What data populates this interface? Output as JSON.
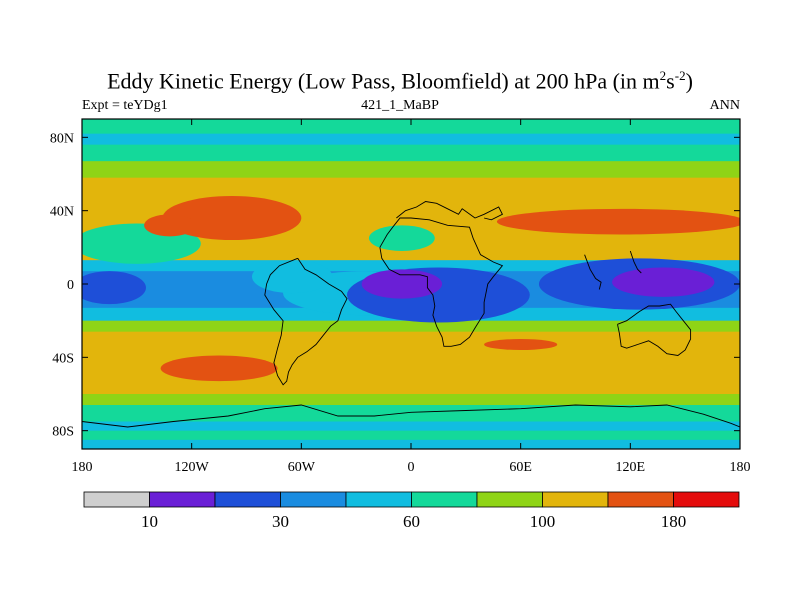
{
  "header": {
    "title_main": "Eddy Kinetic Energy (Low Pass, Bloomfield) at 200 hPa (in m",
    "title_sup1": "2",
    "title_mid": "s",
    "title_sup2": "-2",
    "title_end": ")",
    "left_label": "Expt = teYDg1",
    "center_label": "421_1_MaBP",
    "right_label": "ANN"
  },
  "chart_data": {
    "type": "heatmap",
    "title": "Eddy Kinetic Energy (Low Pass, Bloomfield) at 200 hPa (in m2s-2)",
    "xlabel": "",
    "ylabel": "",
    "xlim": [
      -180,
      180
    ],
    "ylim": [
      -90,
      90
    ],
    "x_ticks": [
      {
        "value": -180,
        "label": "180"
      },
      {
        "value": -120,
        "label": "120W"
      },
      {
        "value": -60,
        "label": "60W"
      },
      {
        "value": 0,
        "label": "0"
      },
      {
        "value": 60,
        "label": "60E"
      },
      {
        "value": 120,
        "label": "120E"
      },
      {
        "value": 180,
        "label": "180"
      }
    ],
    "y_ticks": [
      {
        "value": 80,
        "label": "80N"
      },
      {
        "value": 40,
        "label": "40N"
      },
      {
        "value": 0,
        "label": "0"
      },
      {
        "value": -40,
        "label": "40S"
      },
      {
        "value": -80,
        "label": "80S"
      }
    ],
    "colorbar": {
      "colors": [
        "#cfcfcf",
        "#6a1fd6",
        "#1e4fd8",
        "#1a8ce0",
        "#11bde0",
        "#14d99a",
        "#8fd416",
        "#e2b50c",
        "#e35212",
        "#e40c0c"
      ],
      "labels": [
        {
          "after_box": 1,
          "text": "10"
        },
        {
          "after_box": 3,
          "text": "30"
        },
        {
          "after_box": 5,
          "text": "60"
        },
        {
          "after_box": 7,
          "text": "100"
        },
        {
          "after_box": 9,
          "text": "180"
        }
      ]
    },
    "bands": [
      {
        "lat_top": 90,
        "lat_bottom": 82,
        "level": 5
      },
      {
        "lat_top": 82,
        "lat_bottom": 76,
        "level": 4
      },
      {
        "lat_top": 76,
        "lat_bottom": 67,
        "level": 5
      },
      {
        "lat_top": 67,
        "lat_bottom": 58,
        "level": 6
      },
      {
        "lat_top": 58,
        "lat_bottom": 13,
        "level": 7
      },
      {
        "lat_top": 13,
        "lat_bottom": 7,
        "level": 4
      },
      {
        "lat_top": 7,
        "lat_bottom": -13,
        "level": 3
      },
      {
        "lat_top": -13,
        "lat_bottom": -20,
        "level": 4
      },
      {
        "lat_top": -20,
        "lat_bottom": -26,
        "level": 6
      },
      {
        "lat_top": -26,
        "lat_bottom": -60,
        "level": 7
      },
      {
        "lat_top": -60,
        "lat_bottom": -66,
        "level": 6
      },
      {
        "lat_top": -66,
        "lat_bottom": -75,
        "level": 5
      },
      {
        "lat_top": -75,
        "lat_bottom": -80,
        "level": 4
      },
      {
        "lat_top": -80,
        "lat_bottom": -85,
        "level": 5
      },
      {
        "lat_top": -85,
        "lat_bottom": -90,
        "level": 4
      }
    ],
    "blobs": [
      {
        "lon": -150,
        "lat": 22,
        "rlon": 35,
        "rlat": 11,
        "level": 5
      },
      {
        "lon": -25,
        "lat": -5,
        "rlon": 45,
        "rlat": 12,
        "level": 4
      },
      {
        "lon": -65,
        "lat": 4,
        "rlon": 22,
        "rlat": 9,
        "level": 4
      },
      {
        "lon": -5,
        "lat": 25,
        "rlon": 18,
        "rlat": 7,
        "level": 5
      },
      {
        "lon": -98,
        "lat": 36,
        "rlon": 38,
        "rlat": 12,
        "level": 8
      },
      {
        "lon": -132,
        "lat": 32,
        "rlon": 14,
        "rlat": 6,
        "level": 8
      },
      {
        "lon": 115,
        "lat": 34,
        "rlon": 68,
        "rlat": 7,
        "level": 8
      },
      {
        "lon": 15,
        "lat": -6,
        "rlon": 50,
        "rlat": 15,
        "level": 2
      },
      {
        "lon": 125,
        "lat": 0,
        "rlon": 55,
        "rlat": 14,
        "level": 2
      },
      {
        "lon": -5,
        "lat": 0,
        "rlon": 22,
        "rlat": 8,
        "level": 1
      },
      {
        "lon": 138,
        "lat": 1,
        "rlon": 28,
        "rlat": 8,
        "level": 1
      },
      {
        "lon": -165,
        "lat": -2,
        "rlon": 20,
        "rlat": 9,
        "level": 2
      },
      {
        "lon": -105,
        "lat": -46,
        "rlon": 32,
        "rlat": 7,
        "level": 8
      },
      {
        "lon": 60,
        "lat": -33,
        "rlon": 20,
        "rlat": 3,
        "level": 8
      }
    ],
    "coastlines": [
      [
        [
          -62,
          14
        ],
        [
          -58,
          8
        ],
        [
          -52,
          5
        ],
        [
          -45,
          0
        ],
        [
          -38,
          -4
        ],
        [
          -35,
          -8
        ],
        [
          -38,
          -14
        ],
        [
          -40,
          -20
        ],
        [
          -44,
          -23
        ],
        [
          -48,
          -28
        ],
        [
          -52,
          -33
        ],
        [
          -57,
          -37
        ],
        [
          -62,
          -40
        ],
        [
          -65,
          -44
        ],
        [
          -67,
          -48
        ],
        [
          -68,
          -53
        ],
        [
          -70,
          -55
        ],
        [
          -73,
          -50
        ],
        [
          -75,
          -43
        ],
        [
          -73,
          -35
        ],
        [
          -71,
          -28
        ],
        [
          -70,
          -20
        ],
        [
          -75,
          -14
        ],
        [
          -80,
          -6
        ],
        [
          -79,
          0
        ],
        [
          -77,
          5
        ],
        [
          -72,
          10
        ],
        [
          -62,
          14
        ]
      ],
      [
        [
          -17,
          20
        ],
        [
          -16,
          14
        ],
        [
          -12,
          8
        ],
        [
          -6,
          5
        ],
        [
          5,
          5
        ],
        [
          9,
          4
        ],
        [
          9,
          -2
        ],
        [
          12,
          -6
        ],
        [
          13,
          -12
        ],
        [
          12,
          -17
        ],
        [
          14,
          -23
        ],
        [
          17,
          -29
        ],
        [
          18,
          -34
        ],
        [
          22,
          -34
        ],
        [
          27,
          -33
        ],
        [
          32,
          -29
        ],
        [
          35,
          -24
        ],
        [
          40,
          -16
        ],
        [
          40,
          -10
        ],
        [
          42,
          0
        ],
        [
          45,
          4
        ],
        [
          50,
          10
        ],
        [
          45,
          12
        ],
        [
          38,
          16
        ],
        [
          34,
          25
        ],
        [
          32,
          31
        ],
        [
          20,
          32
        ],
        [
          10,
          35
        ],
        [
          0,
          36
        ],
        [
          -6,
          36
        ],
        [
          -10,
          31
        ],
        [
          -13,
          27
        ],
        [
          -17,
          20
        ]
      ],
      [
        [
          -8,
          36
        ],
        [
          -3,
          40
        ],
        [
          3,
          42
        ],
        [
          8,
          45
        ],
        [
          14,
          44
        ],
        [
          20,
          41
        ],
        [
          26,
          38
        ],
        [
          28,
          41
        ],
        [
          35,
          36
        ],
        [
          40,
          38
        ],
        [
          48,
          42
        ],
        [
          50,
          38
        ],
        [
          44,
          35
        ],
        [
          40,
          36
        ]
      ],
      [
        [
          95,
          16
        ],
        [
          98,
          8
        ],
        [
          101,
          3
        ],
        [
          104,
          1
        ],
        [
          103,
          -3
        ]
      ],
      [
        [
          113,
          -22
        ],
        [
          114,
          -27
        ],
        [
          115,
          -34
        ],
        [
          118,
          -35
        ],
        [
          124,
          -33
        ],
        [
          130,
          -31
        ],
        [
          135,
          -34
        ],
        [
          140,
          -38
        ],
        [
          146,
          -39
        ],
        [
          150,
          -36
        ],
        [
          153,
          -30
        ],
        [
          153,
          -25
        ],
        [
          149,
          -20
        ],
        [
          145,
          -15
        ],
        [
          142,
          -11
        ],
        [
          136,
          -12
        ],
        [
          130,
          -12
        ],
        [
          125,
          -15
        ],
        [
          118,
          -20
        ],
        [
          113,
          -22
        ]
      ],
      [
        [
          120,
          18
        ],
        [
          122,
          12
        ],
        [
          124,
          8
        ],
        [
          126,
          6
        ]
      ],
      [
        [
          -180,
          -75
        ],
        [
          -155,
          -78
        ],
        [
          -130,
          -75
        ],
        [
          -100,
          -72
        ],
        [
          -80,
          -68
        ],
        [
          -60,
          -66
        ],
        [
          -40,
          -72
        ],
        [
          -20,
          -72
        ],
        [
          0,
          -70
        ],
        [
          30,
          -69
        ],
        [
          60,
          -68
        ],
        [
          90,
          -66
        ],
        [
          120,
          -67
        ],
        [
          140,
          -66
        ],
        [
          160,
          -71
        ],
        [
          175,
          -76
        ],
        [
          180,
          -78
        ]
      ]
    ]
  }
}
